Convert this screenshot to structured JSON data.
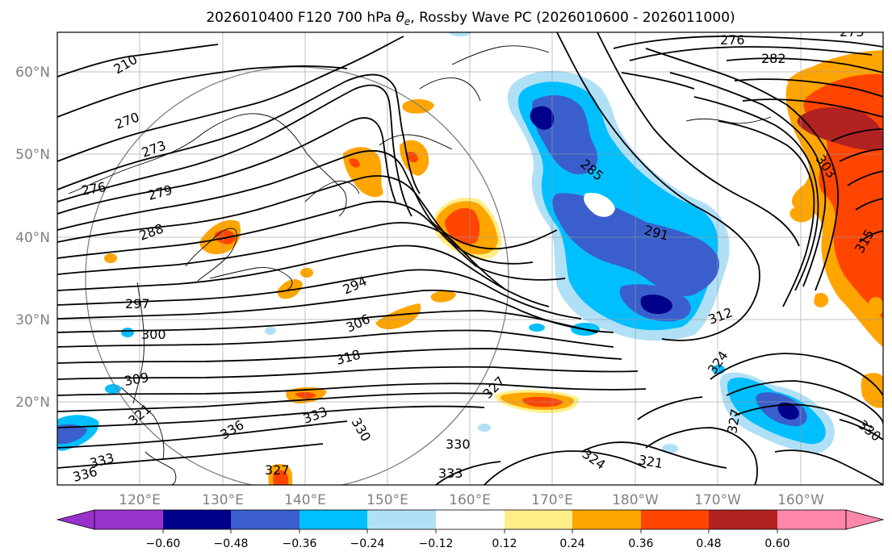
{
  "title": "2026010400 F120 700 hPa θe, Rossby Wave PC (2026010600 - 2026011000)",
  "title_parts": {
    "prefix": "2026010400 F120 700 hPa ",
    "theta": "θ",
    "theta_sub": "e",
    "suffix": ", Rossby Wave PC (2026010600 - 2026011000)"
  },
  "map": {
    "lon_labels": [
      "120°E",
      "130°E",
      "140°E",
      "150°E",
      "160°E",
      "170°E",
      "180°W",
      "170°W",
      "160°W"
    ],
    "lat_labels": [
      "60°N",
      "50°N",
      "40°N",
      "30°N",
      "20°N"
    ],
    "label_color": "#808080",
    "contour_labels": [
      "270",
      "273",
      "276",
      "279",
      "282",
      "285",
      "288",
      "291",
      "294",
      "297",
      "300",
      "303",
      "306",
      "309",
      "312",
      "315",
      "318",
      "321",
      "324",
      "327",
      "330",
      "333",
      "336"
    ],
    "contour_label_instances": [
      "210",
      "270",
      "273",
      "276",
      "279",
      "276",
      "273",
      "282",
      "285",
      "288",
      "291",
      "294",
      "297",
      "300",
      "303",
      "306",
      "309",
      "312",
      "315",
      "318",
      "321",
      "324",
      "324",
      "321",
      "327",
      "327",
      "330",
      "330",
      "330",
      "333",
      "333",
      "333",
      "336",
      "336",
      "327",
      "321"
    ]
  },
  "colorbar": {
    "ticks": [
      "−0.60",
      "−0.48",
      "−0.36",
      "−0.24",
      "−0.12",
      "0.12",
      "0.24",
      "0.36",
      "0.48",
      "0.60"
    ],
    "colors": [
      "#9932cc",
      "#00008b",
      "#3a5fcd",
      "#00bfff",
      "#b0e0f6",
      "#ffffff",
      "#ffee88",
      "#ffa500",
      "#ff4500",
      "#b22222",
      "#ff88aa"
    ],
    "extend": "both"
  }
}
